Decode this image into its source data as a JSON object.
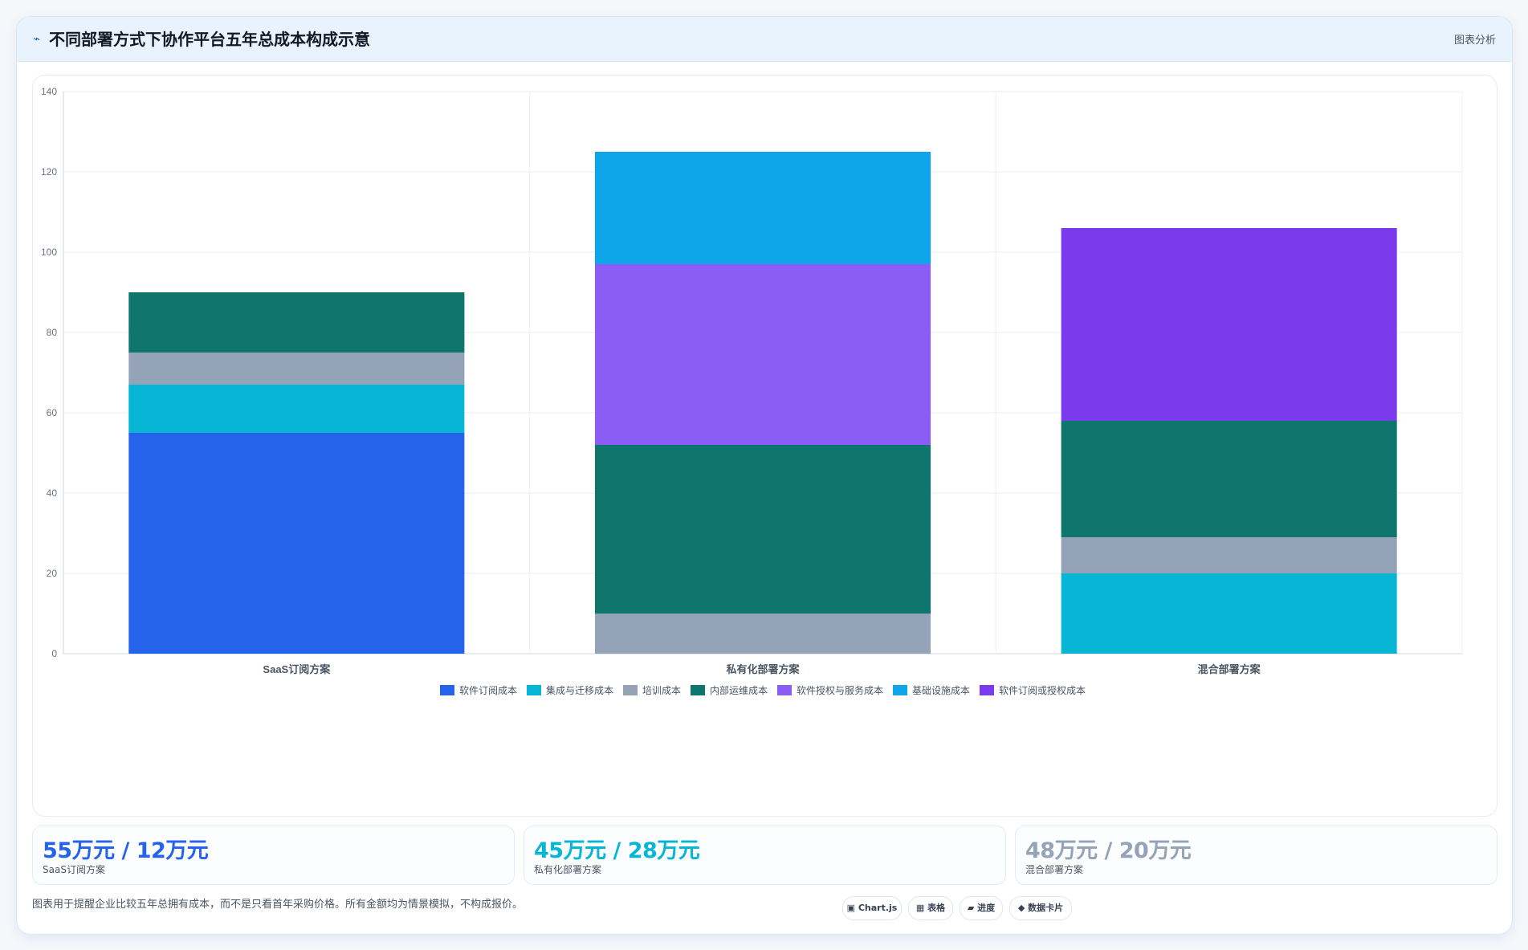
{
  "header": {
    "icon": "trend-icon",
    "title": "不同部署方式下协作平台五年总成本构成示意",
    "link_label": "图表分析"
  },
  "chart_data": {
    "type": "bar",
    "stacked": true,
    "categories": [
      "SaaS订阅方案",
      "私有化部署方案",
      "混合部署方案"
    ],
    "series": [
      {
        "name": "软件订阅成本",
        "color": "#2563eb",
        "values": [
          55,
          0,
          0
        ]
      },
      {
        "name": "集成与迁移成本",
        "color": "#06b6d4",
        "values": [
          12,
          0,
          20
        ]
      },
      {
        "name": "培训成本",
        "color": "#94a3b8",
        "values": [
          8,
          10,
          9
        ]
      },
      {
        "name": "内部运维成本",
        "color": "#0f766e",
        "values": [
          15,
          42,
          29
        ]
      },
      {
        "name": "软件授权与服务成本",
        "color": "#8b5cf6",
        "values": [
          0,
          45,
          0
        ]
      },
      {
        "name": "基础设施成本",
        "color": "#0ea5e9",
        "values": [
          0,
          28,
          0
        ]
      },
      {
        "name": "软件订阅或授权成本",
        "color": "#7c3aed",
        "values": [
          0,
          0,
          48
        ]
      }
    ],
    "ylim": [
      0,
      140
    ],
    "yticks": [
      0,
      20,
      40,
      60,
      80,
      100,
      120,
      140
    ],
    "grid": true,
    "legend_position": "bottom"
  },
  "stats": [
    {
      "value": "55万元 / 12万元",
      "label": "SaaS订阅方案",
      "color": "#2563eb"
    },
    {
      "value": "45万元 / 28万元",
      "label": "私有化部署方案",
      "color": "#06b6d4"
    },
    {
      "value": "48万元 / 20万元",
      "label": "混合部署方案",
      "color": "#94a3b8"
    }
  ],
  "footnote": "图表用于提醒企业比较五年总拥有成本，而不是只看首年采购价格。所有金额均为情景模拟，不构成报价。",
  "tags": [
    {
      "label": "▣ Chart.js",
      "icon": "chart-icon"
    },
    {
      "label": "▦ 表格",
      "icon": "table-icon"
    },
    {
      "label": "▰ 进度",
      "icon": "progress-icon"
    },
    {
      "label": "◆ 数据卡片",
      "icon": "card-icon"
    }
  ]
}
